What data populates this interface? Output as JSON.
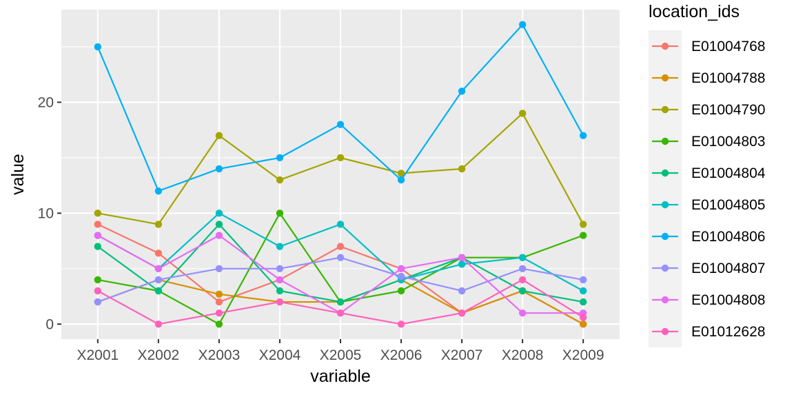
{
  "chart_data": {
    "type": "line",
    "xlabel": "variable",
    "ylabel": "value",
    "categories": [
      "X2001",
      "X2002",
      "X2003",
      "X2004",
      "X2005",
      "X2006",
      "X2007",
      "X2008",
      "X2009"
    ],
    "ylim": [
      -1.35,
      28.35
    ],
    "y_ticks": [
      0,
      10,
      20
    ],
    "grid": true,
    "legend": {
      "title": "location_ids",
      "position": "right"
    },
    "series": [
      {
        "name": "E01004768",
        "color": "#F8766D",
        "values": [
          9,
          6.4,
          2,
          4,
          7,
          5,
          1,
          3,
          0
        ]
      },
      {
        "name": "E01004788",
        "color": "#D89000",
        "values": [
          2,
          4,
          2.7,
          2,
          2,
          4,
          1,
          3,
          0
        ]
      },
      {
        "name": "E01004790",
        "color": "#A3A500",
        "values": [
          10,
          9,
          17,
          13,
          15,
          13.6,
          14,
          19,
          9
        ]
      },
      {
        "name": "E01004803",
        "color": "#39B600",
        "values": [
          4,
          3,
          0,
          10,
          2,
          3,
          6,
          6,
          8
        ]
      },
      {
        "name": "E01004804",
        "color": "#00BF7D",
        "values": [
          7,
          3,
          9,
          3,
          2,
          4,
          6,
          3,
          2
        ]
      },
      {
        "name": "E01004805",
        "color": "#00BFC4",
        "values": [
          8,
          5,
          10,
          7,
          9,
          4,
          5.4,
          6,
          3
        ]
      },
      {
        "name": "E01004806",
        "color": "#00B0F6",
        "values": [
          25,
          12,
          14,
          15,
          18,
          13,
          21,
          27,
          17
        ]
      },
      {
        "name": "E01004807",
        "color": "#9590FF",
        "values": [
          2,
          4,
          5,
          5,
          6,
          4.3,
          3,
          5,
          4
        ]
      },
      {
        "name": "E01004808",
        "color": "#E76BF3",
        "values": [
          8,
          5,
          8,
          4,
          1,
          5,
          6,
          1,
          1
        ]
      },
      {
        "name": "E01012628",
        "color": "#FF62BC",
        "values": [
          3,
          0,
          1,
          2,
          1,
          0,
          1,
          4,
          0.6
        ]
      }
    ]
  }
}
